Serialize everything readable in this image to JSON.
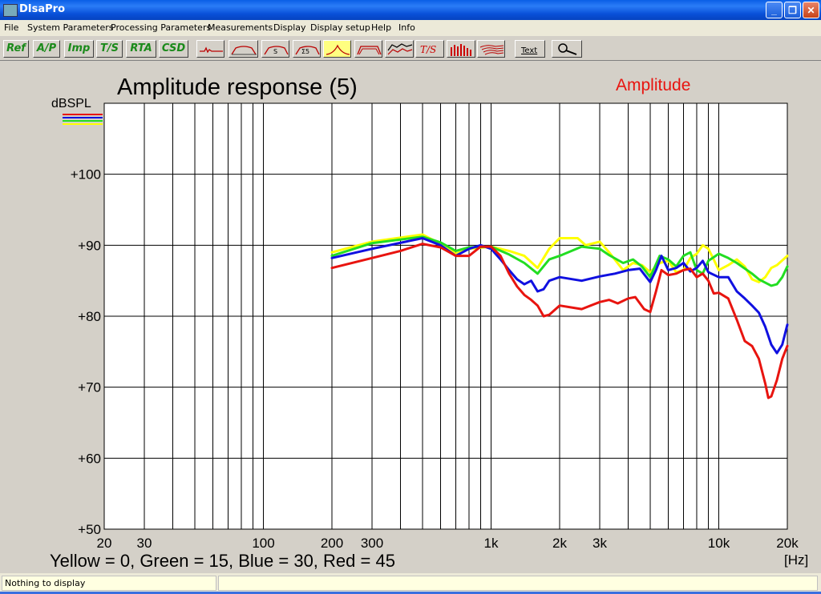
{
  "window": {
    "title": "DIsaPro"
  },
  "menu": [
    "File",
    "System Parameters",
    "Processing Parameters",
    "Measurements",
    "Display",
    "Display setup",
    "Help",
    "Info"
  ],
  "toolbar": {
    "text_buttons": [
      "Ref",
      "A/P",
      "Imp",
      "T/S",
      "RTA",
      "CSD"
    ],
    "icon_buttons": [
      "waveform-icon",
      "amplitude-icon",
      "s-curve-icon",
      "sum-s-icon",
      "peak-icon",
      "multi-response-icon",
      "stacked-icon",
      "ts-icon",
      "spectrum-bars-icon",
      "waterfall-icon"
    ],
    "ts_label": "T/S",
    "text_tool_label": "Text",
    "zoom_icon": "magnifier-icon"
  },
  "colors": {
    "red": "#e8140f",
    "blue": "#1010e0",
    "green": "#22dd22",
    "yellow": "#ffff00"
  },
  "chart_data": {
    "type": "line",
    "title": "Amplitude response (5)",
    "subtitle": "Amplitude",
    "ylabel": "dBSPL",
    "xlabel": "[Hz]",
    "x_scale": "log",
    "xlim": [
      20,
      20000
    ],
    "ylim": [
      50,
      110
    ],
    "x_tick_labels": [
      {
        "v": 20,
        "t": "20"
      },
      {
        "v": 30,
        "t": "30"
      },
      {
        "v": 100,
        "t": "100"
      },
      {
        "v": 200,
        "t": "200"
      },
      {
        "v": 300,
        "t": "300"
      },
      {
        "v": 1000,
        "t": "1k"
      },
      {
        "v": 2000,
        "t": "2k"
      },
      {
        "v": 3000,
        "t": "3k"
      },
      {
        "v": 10000,
        "t": "10k"
      },
      {
        "v": 20000,
        "t": "20k"
      }
    ],
    "y_tick_labels": [
      {
        "v": 50,
        "t": "+50"
      },
      {
        "v": 60,
        "t": "+60"
      },
      {
        "v": 70,
        "t": "+70"
      },
      {
        "v": 80,
        "t": "+80"
      },
      {
        "v": 90,
        "t": "+90"
      },
      {
        "v": 100,
        "t": "+100"
      }
    ],
    "caption": "Yellow = 0, Green = 15, Blue = 30, Red = 45",
    "grid": true,
    "series": [
      {
        "color": "#ffff00",
        "points": [
          [
            200,
            89
          ],
          [
            300,
            90.5
          ],
          [
            500,
            91.5
          ],
          [
            600,
            90.2
          ],
          [
            700,
            88.8
          ],
          [
            800,
            89.5
          ],
          [
            1000,
            89.8
          ],
          [
            1200,
            89.2
          ],
          [
            1400,
            88.5
          ],
          [
            1600,
            86.8
          ],
          [
            1800,
            89.5
          ],
          [
            2000,
            91
          ],
          [
            2400,
            91
          ],
          [
            2600,
            90
          ],
          [
            3000,
            90.5
          ],
          [
            3300,
            89
          ],
          [
            3800,
            86.5
          ],
          [
            4200,
            87.5
          ],
          [
            4600,
            87.2
          ],
          [
            5000,
            86.2
          ],
          [
            5500,
            87.5
          ],
          [
            6000,
            87.8
          ],
          [
            6500,
            86.2
          ],
          [
            7000,
            86.5
          ],
          [
            7500,
            88.2
          ],
          [
            8000,
            88.8
          ],
          [
            8500,
            90
          ],
          [
            9000,
            89.5
          ],
          [
            9500,
            88
          ],
          [
            10000,
            86.5
          ],
          [
            11000,
            87.2
          ],
          [
            12000,
            88
          ],
          [
            13000,
            87
          ],
          [
            14000,
            85.2
          ],
          [
            15000,
            84.8
          ],
          [
            16000,
            85.5
          ],
          [
            17000,
            86.8
          ],
          [
            18000,
            87.2
          ],
          [
            20000,
            88.5
          ]
        ]
      },
      {
        "color": "#22dd22",
        "points": [
          [
            200,
            88.5
          ],
          [
            300,
            90.3
          ],
          [
            500,
            91.2
          ],
          [
            600,
            90.4
          ],
          [
            700,
            89.2
          ],
          [
            800,
            89.7
          ],
          [
            1000,
            89.8
          ],
          [
            1200,
            88.7
          ],
          [
            1400,
            87.5
          ],
          [
            1600,
            86
          ],
          [
            1800,
            88
          ],
          [
            2000,
            88.5
          ],
          [
            2500,
            89.8
          ],
          [
            3000,
            89.5
          ],
          [
            3300,
            88.6
          ],
          [
            3800,
            87.5
          ],
          [
            4200,
            88
          ],
          [
            4600,
            87
          ],
          [
            5000,
            85.5
          ],
          [
            5500,
            88.5
          ],
          [
            6000,
            88
          ],
          [
            6500,
            87
          ],
          [
            7000,
            88.5
          ],
          [
            7500,
            89
          ],
          [
            8000,
            86.5
          ],
          [
            8500,
            86
          ],
          [
            9000,
            87.8
          ],
          [
            10000,
            88.8
          ],
          [
            11000,
            88.2
          ],
          [
            12000,
            87.5
          ],
          [
            14000,
            86
          ],
          [
            15000,
            85.2
          ],
          [
            17000,
            84.3
          ],
          [
            18000,
            84.5
          ],
          [
            19000,
            85.5
          ],
          [
            20000,
            87
          ]
        ]
      },
      {
        "color": "#1010e0",
        "points": [
          [
            200,
            88.2
          ],
          [
            300,
            89.5
          ],
          [
            500,
            91
          ],
          [
            600,
            90
          ],
          [
            700,
            88.5
          ],
          [
            800,
            89.5
          ],
          [
            900,
            90
          ],
          [
            1000,
            89.5
          ],
          [
            1100,
            88
          ],
          [
            1200,
            86.5
          ],
          [
            1300,
            85.2
          ],
          [
            1400,
            84.5
          ],
          [
            1500,
            85
          ],
          [
            1600,
            83.5
          ],
          [
            1700,
            83.8
          ],
          [
            1800,
            85
          ],
          [
            2000,
            85.5
          ],
          [
            2500,
            85
          ],
          [
            3000,
            85.6
          ],
          [
            3500,
            86
          ],
          [
            4000,
            86.5
          ],
          [
            4500,
            86.7
          ],
          [
            5000,
            84.8
          ],
          [
            5300,
            86.5
          ],
          [
            5600,
            88.5
          ],
          [
            6000,
            86.5
          ],
          [
            6500,
            86.8
          ],
          [
            7000,
            87.5
          ],
          [
            7500,
            86.3
          ],
          [
            8000,
            86.8
          ],
          [
            8500,
            87.8
          ],
          [
            9000,
            86.2
          ],
          [
            10000,
            85.5
          ],
          [
            11000,
            85.5
          ],
          [
            12000,
            83.5
          ],
          [
            13000,
            82.5
          ],
          [
            14000,
            81.5
          ],
          [
            15000,
            80.5
          ],
          [
            16000,
            78.5
          ],
          [
            17000,
            76
          ],
          [
            18000,
            74.8
          ],
          [
            19000,
            76
          ],
          [
            20000,
            78.8
          ]
        ]
      },
      {
        "color": "#e8140f",
        "points": [
          [
            200,
            86.8
          ],
          [
            300,
            88.2
          ],
          [
            400,
            89.2
          ],
          [
            500,
            90.2
          ],
          [
            600,
            89.7
          ],
          [
            700,
            88.5
          ],
          [
            800,
            88.5
          ],
          [
            900,
            89.8
          ],
          [
            1000,
            89.8
          ],
          [
            1100,
            88.5
          ],
          [
            1200,
            86
          ],
          [
            1300,
            84.2
          ],
          [
            1400,
            83
          ],
          [
            1500,
            82.3
          ],
          [
            1600,
            81.5
          ],
          [
            1700,
            80
          ],
          [
            1800,
            80.2
          ],
          [
            2000,
            81.5
          ],
          [
            2500,
            81
          ],
          [
            3000,
            82
          ],
          [
            3300,
            82.3
          ],
          [
            3600,
            81.8
          ],
          [
            4000,
            82.5
          ],
          [
            4300,
            82.7
          ],
          [
            4700,
            81
          ],
          [
            5000,
            80.6
          ],
          [
            5300,
            83.5
          ],
          [
            5600,
            86.5
          ],
          [
            6000,
            85.8
          ],
          [
            6500,
            86
          ],
          [
            7000,
            86.5
          ],
          [
            7500,
            86.7
          ],
          [
            8000,
            85.5
          ],
          [
            8500,
            86
          ],
          [
            9000,
            85
          ],
          [
            9500,
            83.2
          ],
          [
            10000,
            83.3
          ],
          [
            11000,
            82.5
          ],
          [
            12000,
            79.5
          ],
          [
            13000,
            76.5
          ],
          [
            14000,
            75.8
          ],
          [
            15000,
            74
          ],
          [
            16000,
            70.5
          ],
          [
            16500,
            68.5
          ],
          [
            17000,
            68.7
          ],
          [
            18000,
            71
          ],
          [
            19000,
            74
          ],
          [
            20000,
            75.8
          ]
        ]
      }
    ]
  },
  "status": {
    "text": "Nothing to display"
  }
}
